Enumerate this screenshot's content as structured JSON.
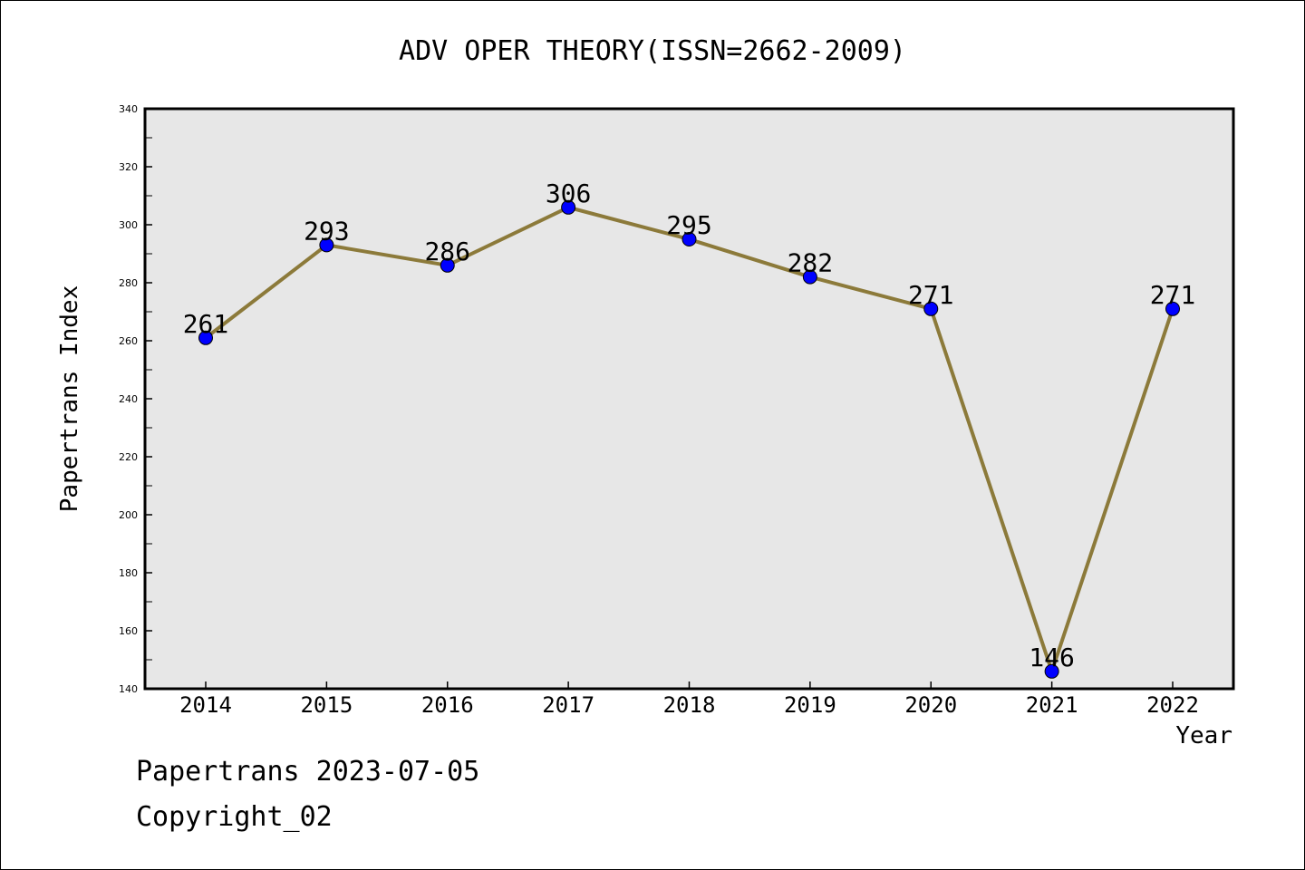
{
  "chart_data": {
    "type": "line",
    "title": "ADV OPER THEORY(ISSN=2662-2009)",
    "xlabel": "Year",
    "ylabel": "Papertrans Index",
    "categories": [
      "2014",
      "2015",
      "2016",
      "2017",
      "2018",
      "2019",
      "2020",
      "2021",
      "2022"
    ],
    "values": [
      261,
      293,
      286,
      306,
      295,
      282,
      271,
      146,
      271
    ],
    "data_labels": [
      "261",
      "293",
      "286",
      "306",
      "295",
      "282",
      "271",
      "146",
      "271"
    ],
    "ylim": [
      140,
      340
    ],
    "yticks": [
      "140",
      "160",
      "180",
      "200",
      "220",
      "240",
      "260",
      "280",
      "300",
      "320",
      "340"
    ],
    "grid": false,
    "legend": "none",
    "colors": {
      "line": "#8c7a3a",
      "marker": "#0000ff",
      "plot_background": "#e7e7e7"
    }
  },
  "footer": {
    "line1": "Papertrans 2023-07-05",
    "line2": "Copyright_02"
  }
}
